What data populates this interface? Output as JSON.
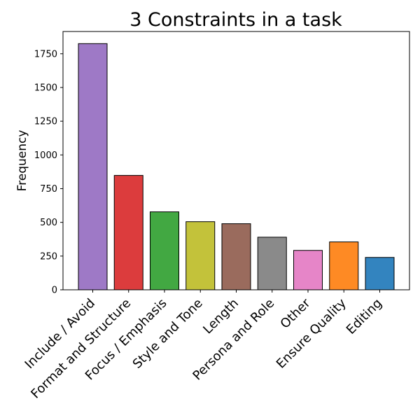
{
  "chart_data": {
    "type": "bar",
    "title": "3 Constraints in a task",
    "xlabel": "",
    "ylabel": "Frequency",
    "ylim": [
      0,
      1915
    ],
    "yticks": [
      0,
      250,
      500,
      750,
      1000,
      1250,
      1500,
      1750
    ],
    "grid": false,
    "categories": [
      "Include / Avoid",
      "Format and Structure",
      "Focus / Emphasis",
      "Style and Tone",
      "Length",
      "Persona and Role",
      "Other",
      "Ensure Quality",
      "Editing"
    ],
    "values": [
      1825,
      848,
      578,
      505,
      490,
      390,
      292,
      355,
      240
    ],
    "colors": [
      "#9e79c6",
      "#dc3c3d",
      "#42a842",
      "#c3c23a",
      "#9a6b5d",
      "#8a8a8a",
      "#e685c8",
      "#fe8a24",
      "#3384bf"
    ],
    "edge_color": "#000000"
  }
}
